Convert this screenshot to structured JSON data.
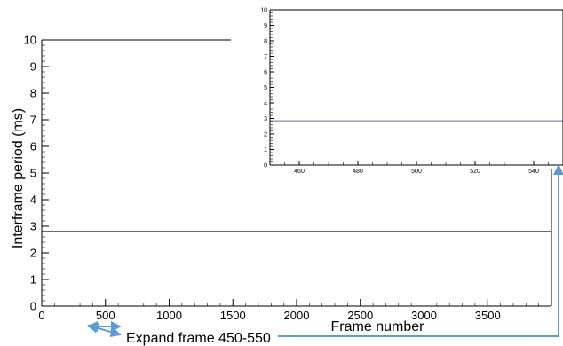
{
  "chart_data": [
    {
      "type": "line",
      "xlabel": "Frame number",
      "ylabel": "Interframe period (ms)",
      "xlim": [
        0,
        4000
      ],
      "ylim": [
        0,
        10
      ],
      "x_ticks": [
        0,
        500,
        1000,
        1500,
        2000,
        2500,
        3000,
        3500
      ],
      "y_ticks": [
        0,
        1,
        2,
        3,
        4,
        5,
        6,
        7,
        8,
        9,
        10
      ],
      "series": [
        {
          "x": [
            0,
            4000
          ],
          "y": [
            2.8,
            2.8
          ],
          "color": "#1f2fb3"
        }
      ],
      "grid": false
    },
    {
      "type": "line",
      "xlabel": "",
      "ylabel": "",
      "xlim": [
        450,
        550
      ],
      "ylim": [
        0,
        10
      ],
      "x_ticks": [
        460,
        480,
        500,
        520,
        540
      ],
      "y_ticks": [
        0,
        1,
        2,
        3,
        4,
        5,
        6,
        7,
        8,
        9,
        10
      ],
      "series": [
        {
          "x": [
            450,
            550
          ],
          "y": [
            2.85,
            2.85
          ],
          "color": "#6a6a9a"
        }
      ],
      "grid": false
    }
  ],
  "annotation": {
    "text": "Expand frame 450-550",
    "arrow_color": "#5b9bd5"
  }
}
